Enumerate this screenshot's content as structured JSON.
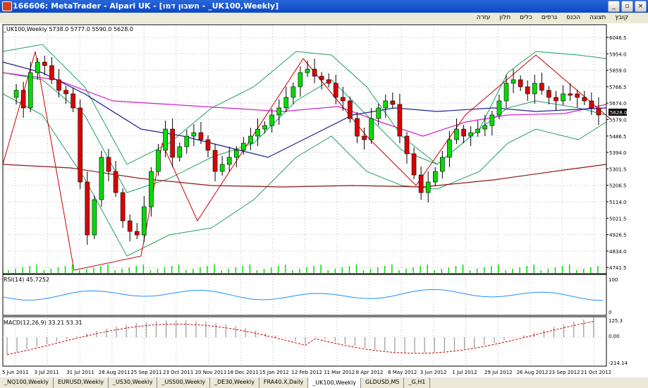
{
  "window": {
    "title": "166606: MetaTrader - Alpari UK - [חשבון דמו - _UK100,Weekly]",
    "buttons": [
      "_",
      "▫",
      "×"
    ]
  },
  "menu": [
    "קובץ",
    "תצוגה",
    "הכנס",
    "גרפים",
    "כלים",
    "חלון",
    "עזרה"
  ],
  "chart": {
    "header": "_UK100,Weekly  5738.0 5777.0 5590.0 5628.0",
    "last_price": "5628.0",
    "price_axis": [
      "6046.5",
      "5954.0",
      "5859.0",
      "5766.5",
      "5674.0",
      "5579.0",
      "5486.5",
      "5394.0",
      "5301.5",
      "5206.5",
      "5114.0",
      "5021.5",
      "4926.5",
      "4834.0",
      "4741.5"
    ],
    "date_axis": [
      "5 Jun 2011",
      "3 Jul 2011",
      "31 Jul 2011",
      "28 Aug 2011",
      "25 Sep 2011",
      "23 Oct 2011",
      "20 Nov 2011",
      "18 Dec 2011",
      "15 Jan 2012",
      "12 Feb 2012",
      "11 Mar 2012",
      "8 Apr 2012",
      "6 May 2012",
      "3 Jun 2012",
      "1 Jul 2012",
      "29 Jul 2012",
      "26 Aug 2012",
      "23 Sep 2012",
      "21 Oct 2012"
    ],
    "rsi": {
      "label": "RSI(14) 45.7252",
      "axis": [
        "100",
        "0"
      ]
    },
    "macd": {
      "label": "MACD(12,26,9) 33.21 53.31",
      "axis": [
        "125.3",
        "0.00",
        "-214.14"
      ]
    },
    "colors": {
      "bull": "#00dd00",
      "bear": "#dd0000",
      "bollinger": "#20a060",
      "ma_slow": "#8b1a1a",
      "ma_mid": "#d020d0",
      "ma_fast": "#202090",
      "rsi": "#1e90ff",
      "macd_signal": "#cc0000",
      "zigzag": "#cc0000"
    }
  },
  "tabs": [
    "_NQ100,Weekly",
    "EURUSD,Weekly",
    "_US30,Weekly",
    "_US500,Weekly",
    "_DE30,Weekly",
    "FRA40.X,Daily",
    "_UK100,Weekly",
    "GLDUSD,M5",
    "_G,H1"
  ],
  "active_tab": "_UK100,Weekly"
}
